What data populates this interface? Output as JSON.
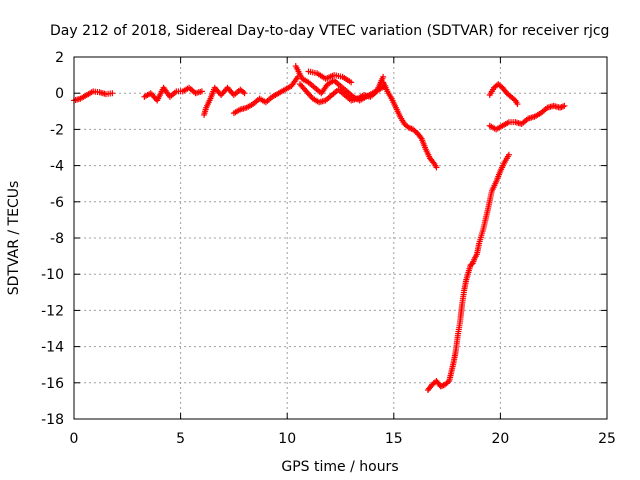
{
  "chart_data": {
    "type": "scatter",
    "title": "Day 212 of 2018, Sidereal Day-to-day VTEC variation (SDTVAR) for receiver rjcg",
    "xlabel": "GPS time / hours",
    "ylabel": "SDTVAR / TECUs",
    "xlim": [
      0,
      25
    ],
    "ylim": [
      -18,
      2
    ],
    "xticks": [
      0,
      5,
      10,
      15,
      20,
      25
    ],
    "yticks": [
      2,
      0,
      -2,
      -4,
      -6,
      -8,
      -10,
      -12,
      -14,
      -16,
      -18
    ],
    "grid": true,
    "marker": "plus",
    "series": [
      {
        "name": "SDTVAR",
        "color": "#ff0000",
        "segments": [
          {
            "x": [
              0.0,
              0.3,
              0.6,
              0.9,
              1.2,
              1.5,
              1.8
            ],
            "y": [
              -0.4,
              -0.3,
              -0.1,
              0.1,
              0.05,
              -0.05,
              0.0
            ]
          },
          {
            "x": [
              3.3,
              3.6,
              3.9,
              4.2,
              4.5,
              4.8,
              5.1,
              5.4,
              5.7,
              6.0
            ],
            "y": [
              -0.2,
              0.0,
              -0.4,
              0.3,
              -0.2,
              0.1,
              0.1,
              0.3,
              0.0,
              0.1
            ]
          },
          {
            "x": [
              6.1,
              6.2,
              6.4,
              6.6,
              6.9,
              7.2,
              7.5,
              7.8,
              8.0
            ],
            "y": [
              -1.2,
              -0.8,
              -0.3,
              0.3,
              -0.1,
              0.3,
              -0.1,
              0.2,
              0.0
            ]
          },
          {
            "x": [
              7.5,
              7.8,
              8.1,
              8.4,
              8.7,
              9.0,
              9.3,
              9.6,
              9.9,
              10.2,
              10.5
            ],
            "y": [
              -1.1,
              -0.9,
              -0.8,
              -0.6,
              -0.3,
              -0.5,
              -0.2,
              0.0,
              0.2,
              0.4,
              0.9
            ]
          },
          {
            "x": [
              10.4,
              10.7,
              11.0,
              11.3,
              11.6,
              11.9,
              12.2,
              12.5,
              12.8,
              13.1,
              13.4,
              13.7,
              14.0,
              14.3,
              14.6
            ],
            "y": [
              1.5,
              0.8,
              0.6,
              0.3,
              0.0,
              0.5,
              0.7,
              0.4,
              0.1,
              -0.2,
              -0.4,
              -0.2,
              0.0,
              0.2,
              0.4
            ]
          },
          {
            "x": [
              10.6,
              10.9,
              11.2,
              11.5,
              11.8,
              12.1,
              12.4,
              12.7,
              13.0,
              13.3,
              13.6,
              13.9,
              14.2,
              14.5
            ],
            "y": [
              0.5,
              0.1,
              -0.3,
              -0.5,
              -0.4,
              -0.1,
              0.2,
              -0.1,
              -0.4,
              -0.3,
              -0.1,
              -0.2,
              0.1,
              0.9
            ]
          },
          {
            "x": [
              11.0,
              11.4,
              11.8,
              12.2,
              12.6,
              13.0
            ],
            "y": [
              1.2,
              1.1,
              0.8,
              1.0,
              0.9,
              0.6
            ]
          },
          {
            "x": [
              14.5,
              14.7,
              14.9,
              15.1,
              15.3,
              15.5,
              15.7,
              15.9,
              16.1,
              16.3,
              16.5,
              16.7,
              16.9,
              17.0
            ],
            "y": [
              0.6,
              0.1,
              -0.3,
              -0.8,
              -1.3,
              -1.7,
              -1.9,
              -2.0,
              -2.2,
              -2.5,
              -3.1,
              -3.6,
              -3.9,
              -4.1
            ]
          },
          {
            "x": [
              16.6,
              16.8,
              17.0,
              17.2,
              17.4,
              17.6,
              17.7,
              17.8,
              17.9,
              18.0,
              18.1,
              18.2,
              18.3,
              18.4,
              18.5,
              18.6,
              18.7,
              18.8,
              18.9,
              19.0,
              19.2,
              19.4,
              19.6,
              19.8,
              20.0,
              20.2,
              20.4
            ],
            "y": [
              -16.4,
              -16.1,
              -15.9,
              -16.2,
              -16.1,
              -15.9,
              -15.4,
              -14.9,
              -14.3,
              -13.4,
              -12.7,
              -11.7,
              -10.9,
              -10.3,
              -9.9,
              -9.5,
              -9.4,
              -9.1,
              -8.9,
              -8.3,
              -7.5,
              -6.5,
              -5.4,
              -4.9,
              -4.3,
              -3.8,
              -3.4
            ]
          },
          {
            "x": [
              19.5,
              19.7,
              19.9,
              20.1,
              20.3,
              20.5,
              20.7,
              20.8
            ],
            "y": [
              -0.1,
              0.3,
              0.5,
              0.3,
              0.0,
              -0.2,
              -0.4,
              -0.6
            ]
          },
          {
            "x": [
              19.5,
              19.8,
              20.1,
              20.4,
              20.7,
              21.0,
              21.3,
              21.6,
              21.9,
              22.2,
              22.5,
              22.8,
              23.0
            ],
            "y": [
              -1.8,
              -2.0,
              -1.8,
              -1.6,
              -1.6,
              -1.7,
              -1.4,
              -1.3,
              -1.1,
              -0.8,
              -0.7,
              -0.8,
              -0.7
            ]
          }
        ]
      }
    ]
  }
}
